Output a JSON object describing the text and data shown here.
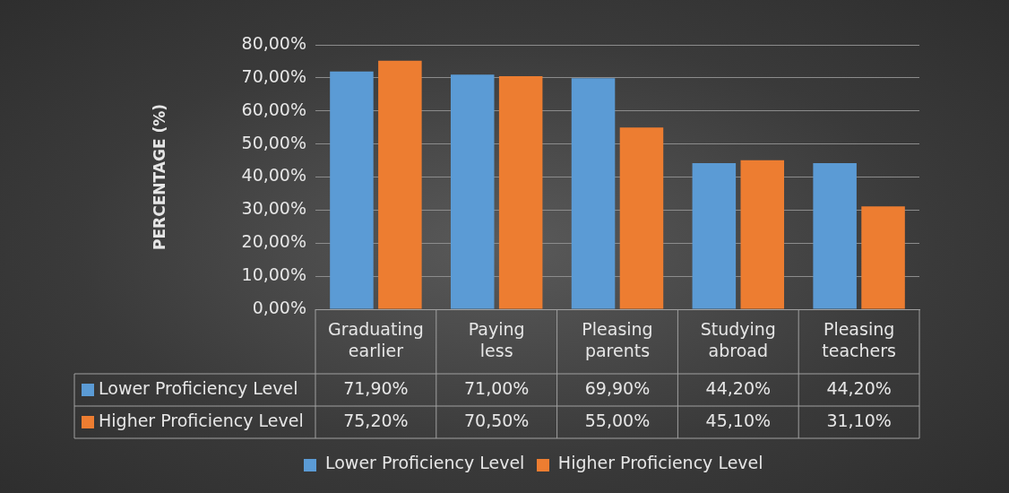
{
  "chart_data": {
    "type": "bar",
    "ylabel": "PERCENTAGE (%)",
    "categories": [
      "Graduating earlier",
      "Paying less",
      "Pleasing parents",
      "Studying abroad",
      "Pleasing teachers"
    ],
    "series": [
      {
        "name": "Lower Proficiency Level",
        "color": "#5b9bd5",
        "values": [
          71.9,
          71.0,
          69.9,
          44.2,
          44.2
        ],
        "value_labels": [
          "71,90%",
          "71,00%",
          "69,90%",
          "44,20%",
          "44,20%"
        ]
      },
      {
        "name": "Higher Proficiency Level",
        "color": "#ed7d31",
        "values": [
          75.2,
          70.5,
          55.0,
          45.1,
          31.1
        ],
        "value_labels": [
          "75,20%",
          "70,50%",
          "55,00%",
          "45,10%",
          "31,10%"
        ]
      }
    ],
    "ylim": [
      0,
      80
    ],
    "yticks": [
      {
        "value": 0,
        "label": "0,00%"
      },
      {
        "value": 10,
        "label": "10,00%"
      },
      {
        "value": 20,
        "label": "20,00%"
      },
      {
        "value": 30,
        "label": "30,00%"
      },
      {
        "value": 40,
        "label": "40,00%"
      },
      {
        "value": 50,
        "label": "50,00%"
      },
      {
        "value": 60,
        "label": "60,00%"
      },
      {
        "value": 70,
        "label": "70,00%"
      },
      {
        "value": 80,
        "label": "80,00%"
      }
    ],
    "grid": "y",
    "legend": "bottom"
  }
}
